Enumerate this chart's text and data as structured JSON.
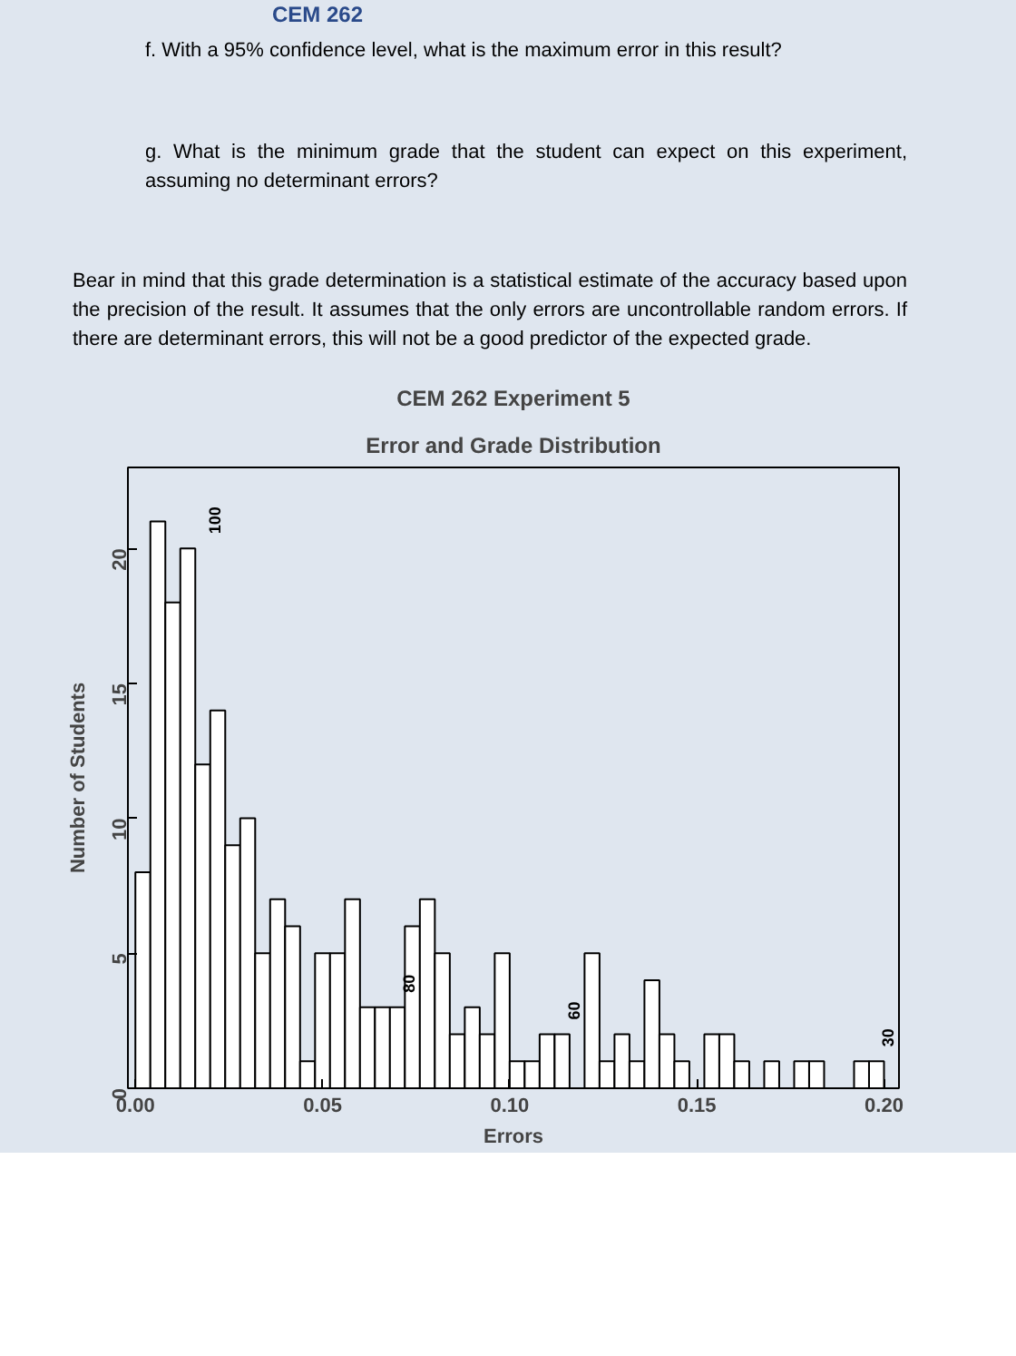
{
  "chart_data": {
    "type": "histogram",
    "title": "CEM 262 Experiment 5",
    "subtitle": "Error and Grade Distribution",
    "xlabel": "Errors",
    "ylabel": "Number of Students",
    "bins": [
      0,
      0.004,
      0.008,
      0.012,
      0.016,
      0.02,
      0.024,
      0.028,
      0.032,
      0.036,
      0.04,
      0.044,
      0.048,
      0.052,
      0.056,
      0.06,
      0.064,
      0.068,
      0.072,
      0.076,
      0.08,
      0.084,
      0.088,
      0.092,
      0.096,
      0.1,
      0.104,
      0.108,
      0.112,
      0.116,
      0.12,
      0.124,
      0.128,
      0.132,
      0.136,
      0.14,
      0.144,
      0.148,
      0.152,
      0.156,
      0.16,
      0.164,
      0.168,
      0.172,
      0.176,
      0.18,
      0.184,
      0.188,
      0.192,
      0.196,
      0.2
    ],
    "values": [
      8,
      21,
      18,
      20,
      12,
      14,
      9,
      10,
      5,
      7,
      6,
      1,
      5,
      5,
      7,
      3,
      3,
      3,
      6,
      7,
      5,
      2,
      3,
      2,
      5,
      1,
      1,
      2,
      2,
      0,
      5,
      1,
      2,
      1,
      4,
      2,
      1,
      0,
      2,
      2,
      1,
      0,
      1,
      0,
      1,
      1,
      0,
      0,
      1,
      1
    ],
    "color": "#ffffff",
    "xlim": [
      -0.002,
      0.204
    ],
    "ylim": [
      0,
      23
    ],
    "xticks": [
      {
        "value": 0,
        "label": "0.00"
      },
      {
        "value": 0.05,
        "label": "0.05"
      },
      {
        "value": 0.1,
        "label": "0.10"
      },
      {
        "value": 0.15,
        "label": "0.15"
      },
      {
        "value": 0.2,
        "label": "0.20"
      }
    ],
    "yticks": [
      0,
      5,
      10,
      15,
      20
    ],
    "grid": false,
    "annotations": [
      "CEM 262",
      "f. With a 95% confidence level, what is the maximum error in this result?",
      "g. What is the minimum grade that the student can expect on this experiment, assuming no determinant errors?",
      "Bear in mind that this grade determination is a statistical estimate of the accuracy based upon the precision of the result. It assumes that the only errors are uncontrollable random errors. If there are determinant errors, this will not be a good predictor of the expected grade.",
      {
        "text": "100",
        "x": 0.018,
        "y": 20
      },
      {
        "text": "80",
        "x": 0.07,
        "y": 3
      },
      {
        "text": "60",
        "x": 0.114,
        "y": 2
      },
      {
        "text": "30",
        "x": 0.198,
        "y": 1
      }
    ]
  }
}
